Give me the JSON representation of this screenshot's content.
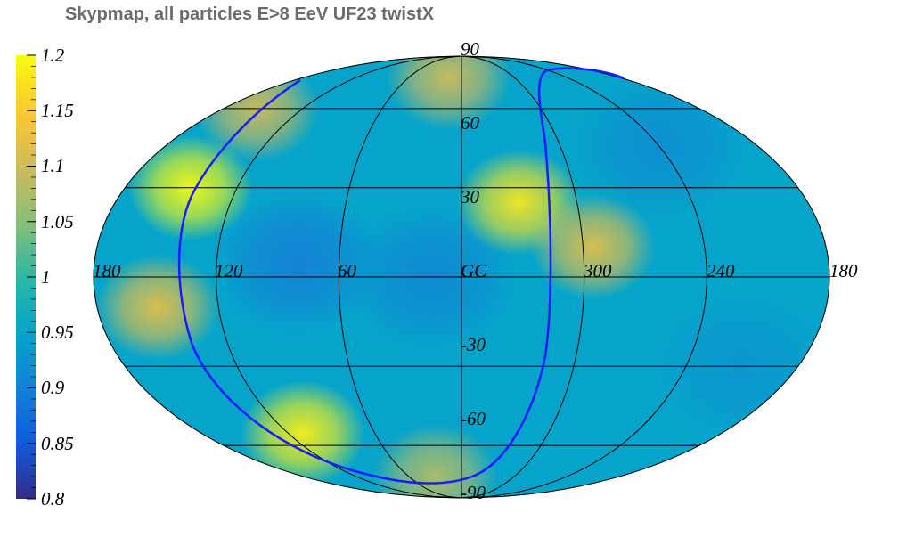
{
  "chart_data": {
    "type": "heatmap",
    "projection": "mollweide",
    "title": "Skypmap, all particles E>8 EeV UF23 twistX",
    "colorbar": {
      "min": 0.8,
      "max": 1.2,
      "ticks": [
        "1.2",
        "1.15",
        "1.1",
        "1.05",
        "1",
        "0.95",
        "0.9",
        "0.85",
        "0.8"
      ],
      "palette": [
        "#352a87",
        "#0f5cdd",
        "#1481d6",
        "#06a4ca",
        "#2eb7a4",
        "#87bf77",
        "#d1bb59",
        "#fec832",
        "#f9fb0e"
      ]
    },
    "longitude_labels": [
      "180",
      "120",
      "60",
      "GC",
      "300",
      "240",
      "180"
    ],
    "latitude_labels": [
      "90",
      "60",
      "30",
      "-30",
      "-60",
      "-90"
    ],
    "meridians_deg": [
      -180,
      -120,
      -60,
      0,
      60,
      120,
      180
    ],
    "parallels_deg": [
      -60,
      -30,
      0,
      30,
      60
    ],
    "map_level": 0.95,
    "hotspots": [
      {
        "lon": 145,
        "lat": 30,
        "value": 1.2
      },
      {
        "lon": 110,
        "lat": -55,
        "value": 1.19
      },
      {
        "lon": 150,
        "lat": -10,
        "value": 1.12
      },
      {
        "lon": 155,
        "lat": 60,
        "value": 1.1
      },
      {
        "lon": -30,
        "lat": 25,
        "value": 1.18
      },
      {
        "lon": -65,
        "lat": 10,
        "value": 1.12
      },
      {
        "lon": 15,
        "lat": 75,
        "value": 1.1
      },
      {
        "lon": 30,
        "lat": -75,
        "value": 1.08
      }
    ],
    "coldspots": [
      {
        "lon": 80,
        "lat": 5,
        "value": 0.9
      },
      {
        "lon": 15,
        "lat": 0,
        "value": 0.91
      },
      {
        "lon": -120,
        "lat": 45,
        "value": 0.92
      },
      {
        "lon": -150,
        "lat": -30,
        "value": 0.93
      }
    ],
    "blue_curve_color": "#1a1aff"
  }
}
